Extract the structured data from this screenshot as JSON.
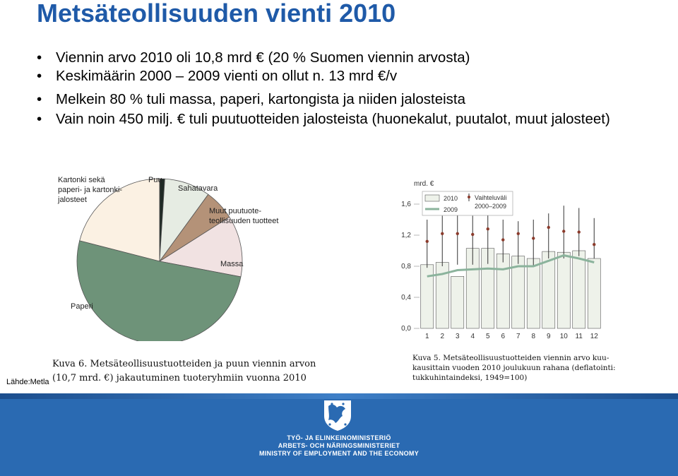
{
  "title": "Metsäteollisuuden vienti 2010",
  "bullets": [
    "Viennin arvo 2010 oli 10,8 mrd € (20 % Suomen viennin arvosta)",
    "Keskimäärin 2000 – 2009 vienti on ollut n. 13 mrd €/v",
    "Melkein 80 % tuli massa, paperi, kartongista ja niiden jalosteista",
    "Vain noin 450 milj. € tuli puutuotteiden jalosteista (huonekalut, puutalot, muut jalosteet)"
  ],
  "bullet_glyph": "•",
  "source": "Lähde:Metla",
  "captions": {
    "pie_line1": "Kuva 6. Metsäteollisuustuotteiden ja puun viennin arvon",
    "pie_line2": "(10,7 mrd. €) jakautuminen tuoteryhmiin vuonna 2010",
    "bar_line1": "Kuva 5. Metsäteollisuustuotteiden viennin arvo kuu-",
    "bar_line2": "kausittain vuoden 2010 joulukuun rahana (deflatointi:",
    "bar_line3": "tukkuhintaindeksi, 1949=100)"
  },
  "footer": {
    "line1": "TYÖ- JA ELINKEINOMINISTERIÖ",
    "line2": "ARBETS- OCH NÄRINGSMINISTERIET",
    "line3": "MINISTRY OF EMPLOYMENT AND THE ECONOMY",
    "color": "#2a6ab2"
  },
  "chart_data": [
    {
      "type": "pie",
      "labels": [
        "Kartonki sekä paperi- ja kartonki-jalosteet",
        "Puu",
        "Sahatavara",
        "Muut puutuote-teollisuuden tuotteet",
        "Massa",
        "Paperi"
      ],
      "label_lines": [
        [
          "Kartonki sekä",
          "paperi- ja kartonki-",
          "jalosteet"
        ],
        [
          "Puu"
        ],
        [
          "Sahatavara"
        ],
        [
          "Muut puutuote-",
          "teollisuuden tuotteet"
        ],
        [
          "Massa"
        ],
        [
          "Paperi"
        ]
      ],
      "values": [
        21,
        1,
        9,
        6,
        12,
        51
      ],
      "colors": [
        "#fbf1e3",
        "#1f2a25",
        "#e6ece3",
        "#b49278",
        "#f1e2e2",
        "#6e9379"
      ],
      "title": "",
      "legend": "none"
    },
    {
      "type": "bar",
      "ylabel": "mrd. €",
      "categories": [
        "1",
        "2",
        "3",
        "4",
        "5",
        "6",
        "7",
        "8",
        "9",
        "10",
        "11",
        "12"
      ],
      "ylim": [
        0,
        1.8
      ],
      "yticks": [
        "0,0",
        "0,4",
        "0,8",
        "1,2",
        "1,6"
      ],
      "series": [
        {
          "name": "2010",
          "values": [
            0.82,
            0.85,
            0.67,
            1.03,
            1.03,
            0.96,
            0.93,
            0.9,
            0.99,
            0.98,
            1.0,
            0.9
          ],
          "color": "#eef2ea"
        },
        {
          "name": "2009",
          "values": [
            0.67,
            0.7,
            0.75,
            0.76,
            0.77,
            0.76,
            0.8,
            0.8,
            0.87,
            0.94,
            0.9,
            0.85
          ],
          "color": "#8bb39c"
        }
      ],
      "range_name": "Vaihteluväli 2000–2009",
      "range_low": [
        0.78,
        0.8,
        0.82,
        0.82,
        0.83,
        0.85,
        0.83,
        0.8,
        0.9,
        0.9,
        0.93,
        0.9
      ],
      "range_high": [
        1.4,
        1.45,
        1.48,
        1.45,
        1.46,
        1.4,
        1.38,
        1.4,
        1.48,
        1.58,
        1.55,
        1.42
      ],
      "range_mid": [
        1.12,
        1.22,
        1.22,
        1.21,
        1.28,
        1.14,
        1.22,
        1.16,
        1.3,
        1.25,
        1.24,
        1.08
      ],
      "grid": false,
      "legend": "top-left"
    }
  ]
}
